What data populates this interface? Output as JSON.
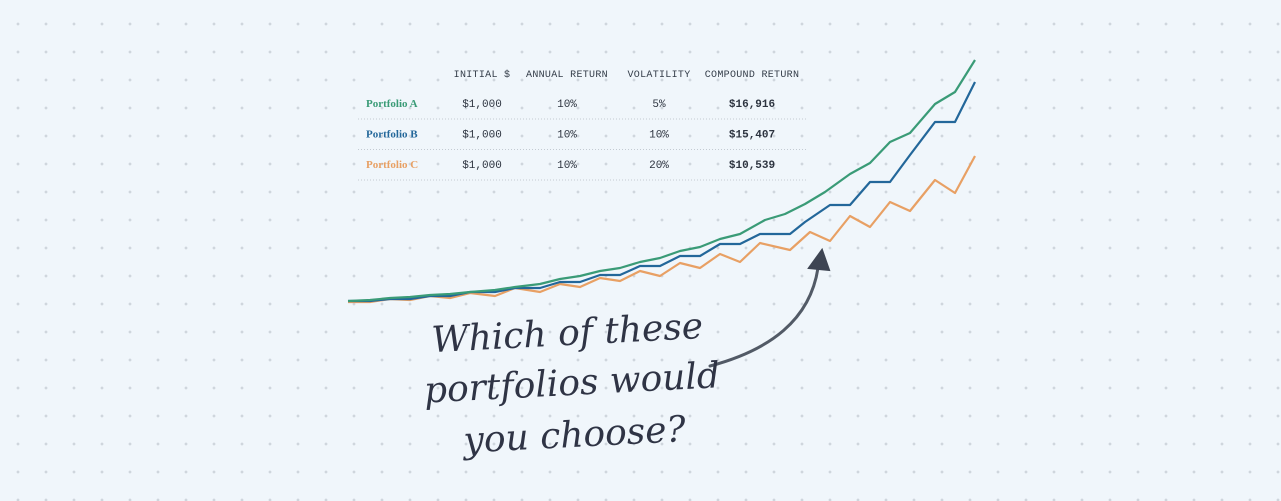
{
  "table": {
    "headers": [
      "INITIAL $",
      "ANNUAL RETURN",
      "VOLATILITY",
      "COMPOUND RETURN"
    ],
    "rows": [
      [
        "Portfolio A",
        "$1,000",
        "10%",
        "5%",
        "$16,916"
      ],
      [
        "Portfolio B",
        "$1,000",
        "10%",
        "10%",
        "$15,407"
      ],
      [
        "Portfolio C",
        "$1,000",
        "10%",
        "20%",
        "$10,539"
      ]
    ]
  },
  "annotation": [
    "Which of these",
    "portfolios would",
    "you choose?"
  ]
}
